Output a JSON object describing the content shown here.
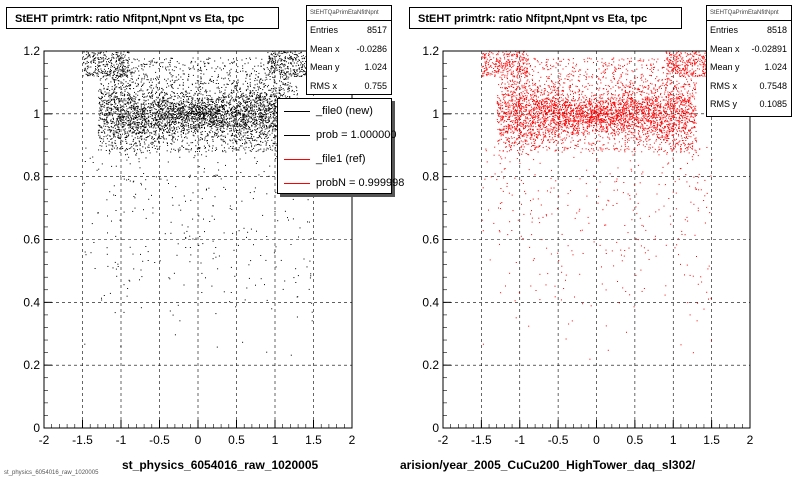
{
  "chart_data": [
    {
      "type": "scatter",
      "title": "StEHT primtrk: ratio Nfitpnt,Npnt vs Eta, tpc",
      "xlim": [
        -2,
        2
      ],
      "ylim": [
        0,
        1.2
      ],
      "x_ticks": [
        "-2",
        "-1.5",
        "-1",
        "-0.5",
        "0",
        "0.5",
        "1",
        "1.5",
        "2"
      ],
      "y_ticks": [
        "0",
        "0.2",
        "0.4",
        "0.6",
        "0.8",
        "1",
        "1.2"
      ],
      "grid": true,
      "marker_color": "#000000",
      "stats": {
        "header": "StEHTQaPrimEtaNfitNpnt",
        "rows": [
          {
            "label": "Entries",
            "value": "8517"
          },
          {
            "label": "Mean x",
            "value": "-0.0286"
          },
          {
            "label": "Mean y",
            "value": "1.024"
          },
          {
            "label": "RMS x",
            "value": "0.755"
          }
        ]
      },
      "legend": [
        {
          "label": "_file0 (new)",
          "color": "#000000"
        },
        {
          "label": "prob = 1.000000",
          "color": "#000000"
        },
        {
          "label": "_file1 (ref)",
          "color": "#ff0000"
        },
        {
          "label": "probN = 0.999998",
          "color": "#ff0000"
        }
      ],
      "xlabel": "st_physics_6054016_raw_1020005"
    },
    {
      "type": "scatter",
      "title": "StEHT primtrk: ratio Nfitpnt,Npnt vs Eta, tpc",
      "xlim": [
        -2,
        2
      ],
      "ylim": [
        0,
        1.2
      ],
      "x_ticks": [
        "-2",
        "-1.5",
        "-1",
        "-0.5",
        "0",
        "0.5",
        "1",
        "1.5",
        "2"
      ],
      "y_ticks": [
        "0",
        "0.2",
        "0.4",
        "0.6",
        "0.8",
        "1",
        "1.2"
      ],
      "grid": true,
      "marker_color": "#ff0000",
      "stats": {
        "header": "StEHTQaPrimEtaNfitNpnt",
        "rows": [
          {
            "label": "Entries",
            "value": "8518"
          },
          {
            "label": "Mean x",
            "value": "-0.02891"
          },
          {
            "label": "Mean y",
            "value": "1.024"
          },
          {
            "label": "RMS x",
            "value": "0.7548"
          },
          {
            "label": "RMS y",
            "value": "0.1085"
          }
        ]
      },
      "xlabel": "arision/year_2005_CuCu200_HighTower_daq_sl302/"
    }
  ],
  "footer_small": "st_physics_6054016_raw_1020005"
}
